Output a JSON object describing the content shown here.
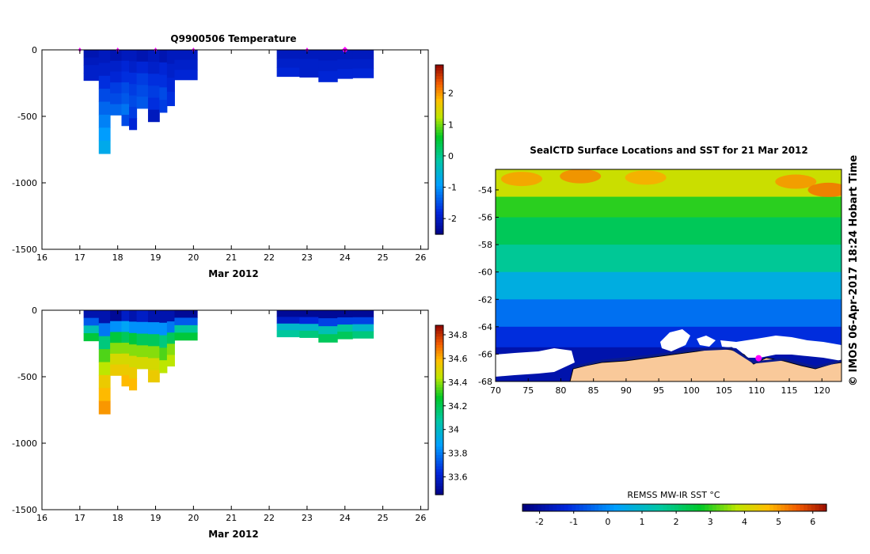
{
  "chart_data": [
    {
      "type": "heatmap",
      "name": "temperature-section",
      "title": "Q9900506  Temperature",
      "xlabel": "Mar 2012",
      "ylabel": "",
      "xlim": [
        16,
        26.2
      ],
      "ylim": [
        -1500,
        0
      ],
      "xticks": [
        16,
        17,
        18,
        19,
        20,
        21,
        22,
        23,
        24,
        25,
        26
      ],
      "yticks": [
        0,
        -500,
        -1000,
        -1500
      ],
      "colorbar": {
        "min": -2.5,
        "max": 2.9,
        "ticks": [
          2,
          1,
          0,
          -1,
          -2
        ]
      },
      "markers": [
        17,
        18,
        19,
        20,
        23,
        24
      ],
      "profiles": [
        {
          "x0": 17.1,
          "x1": 17.5,
          "depth": 230,
          "values": [
            -2.1,
            -2.0,
            -1.9,
            -1.9
          ]
        },
        {
          "x0": 17.5,
          "x1": 17.8,
          "depth": 780,
          "values": [
            -2.0,
            -1.9,
            -1.7,
            -1.5,
            -1.3,
            -1.1,
            -0.9,
            -0.7
          ]
        },
        {
          "x0": 17.8,
          "x1": 18.1,
          "depth": 490,
          "values": [
            -2.1,
            -1.9,
            -1.8,
            -1.6,
            -1.5,
            -1.3
          ]
        },
        {
          "x0": 18.1,
          "x1": 18.3,
          "depth": 570,
          "values": [
            -2.0,
            -1.8,
            -1.7,
            -1.5,
            -1.4,
            -1.2,
            -1.5
          ]
        },
        {
          "x0": 18.3,
          "x1": 18.5,
          "depth": 600,
          "values": [
            -2.0,
            -1.9,
            -1.7,
            -1.6,
            -1.5,
            -1.6,
            -1.8
          ]
        },
        {
          "x0": 18.5,
          "x1": 18.8,
          "depth": 440,
          "values": [
            -2.1,
            -1.8,
            -1.6,
            -1.5,
            -1.4
          ]
        },
        {
          "x0": 18.8,
          "x1": 19.1,
          "depth": 540,
          "values": [
            -2.0,
            -1.9,
            -1.7,
            -1.6,
            -1.7,
            -2.0
          ]
        },
        {
          "x0": 19.1,
          "x1": 19.3,
          "depth": 470,
          "values": [
            -2.1,
            -1.8,
            -1.7,
            -1.5,
            -1.6
          ]
        },
        {
          "x0": 19.3,
          "x1": 19.5,
          "depth": 420,
          "values": [
            -2.0,
            -1.9,
            -1.8,
            -1.7
          ]
        },
        {
          "x0": 19.5,
          "x1": 20.1,
          "depth": 225,
          "values": [
            -2.0,
            -1.9,
            -1.8
          ]
        },
        {
          "x0": 22.2,
          "x1": 22.8,
          "depth": 200,
          "values": [
            -2.0,
            -1.9,
            -1.8
          ]
        },
        {
          "x0": 22.8,
          "x1": 23.3,
          "depth": 205,
          "values": [
            -2.0,
            -1.9,
            -1.9
          ]
        },
        {
          "x0": 23.3,
          "x1": 23.8,
          "depth": 240,
          "values": [
            -2.0,
            -1.9,
            -1.8
          ]
        },
        {
          "x0": 23.8,
          "x1": 24.2,
          "depth": 215,
          "values": [
            -2.0,
            -1.9,
            -1.8
          ]
        },
        {
          "x0": 24.2,
          "x1": 24.75,
          "depth": 210,
          "values": [
            -2.0,
            -1.9,
            -1.8
          ]
        }
      ]
    },
    {
      "type": "heatmap",
      "name": "salinity-section",
      "title": "",
      "xlabel": "Mar 2012",
      "ylabel": "",
      "xlim": [
        16,
        26.2
      ],
      "ylim": [
        -1500,
        0
      ],
      "xticks": [
        16,
        17,
        18,
        19,
        20,
        21,
        22,
        23,
        24,
        25,
        26
      ],
      "yticks": [
        0,
        -500,
        -1000,
        -1500
      ],
      "colorbar": {
        "min": 33.45,
        "max": 34.88,
        "ticks": [
          34.8,
          34.6,
          34.4,
          34.2,
          34,
          33.8,
          33.6
        ]
      },
      "profiles": [
        {
          "x0": 17.1,
          "x1": 17.5,
          "depth": 230,
          "values": [
            33.55,
            33.75,
            34.05,
            34.25
          ]
        },
        {
          "x0": 17.5,
          "x1": 17.8,
          "depth": 780,
          "values": [
            33.55,
            33.8,
            34.15,
            34.35,
            34.45,
            34.55,
            34.6,
            34.65
          ]
        },
        {
          "x0": 17.8,
          "x1": 18.1,
          "depth": 490,
          "values": [
            33.5,
            33.85,
            34.25,
            34.4,
            34.5,
            34.55
          ]
        },
        {
          "x0": 18.1,
          "x1": 18.3,
          "depth": 570,
          "values": [
            33.6,
            33.9,
            34.2,
            34.4,
            34.5,
            34.55,
            34.6
          ]
        },
        {
          "x0": 18.3,
          "x1": 18.5,
          "depth": 600,
          "values": [
            33.55,
            33.85,
            34.25,
            34.4,
            34.5,
            34.55,
            34.6
          ]
        },
        {
          "x0": 18.5,
          "x1": 18.8,
          "depth": 440,
          "values": [
            33.6,
            33.85,
            34.2,
            34.4,
            34.5
          ]
        },
        {
          "x0": 18.8,
          "x1": 19.1,
          "depth": 540,
          "values": [
            33.55,
            33.85,
            34.2,
            34.4,
            34.5,
            34.55
          ]
        },
        {
          "x0": 19.1,
          "x1": 19.3,
          "depth": 470,
          "values": [
            33.55,
            33.85,
            34.15,
            34.35,
            34.45
          ]
        },
        {
          "x0": 19.3,
          "x1": 19.5,
          "depth": 420,
          "values": [
            33.55,
            33.8,
            34.2,
            34.4,
            34.45
          ]
        },
        {
          "x0": 19.5,
          "x1": 20.1,
          "depth": 225,
          "values": [
            33.5,
            33.75,
            34.1,
            34.25
          ]
        },
        {
          "x0": 22.2,
          "x1": 22.8,
          "depth": 200,
          "values": [
            33.5,
            33.6,
            34.0,
            34.1
          ]
        },
        {
          "x0": 22.8,
          "x1": 23.3,
          "depth": 205,
          "values": [
            33.5,
            33.65,
            34.0,
            34.15
          ]
        },
        {
          "x0": 23.3,
          "x1": 23.8,
          "depth": 240,
          "values": [
            33.5,
            33.7,
            34.05,
            34.2
          ]
        },
        {
          "x0": 23.8,
          "x1": 24.2,
          "depth": 215,
          "values": [
            33.5,
            33.7,
            34.1,
            34.2
          ]
        },
        {
          "x0": 24.2,
          "x1": 24.75,
          "depth": 210,
          "values": [
            33.5,
            33.7,
            34.0,
            34.15
          ]
        }
      ]
    },
    {
      "type": "heatmap",
      "name": "sst-map",
      "title": "SealCTD Surface Locations and SST for 21 Mar 2012",
      "xlabel": "",
      "ylabel": "",
      "xlim": [
        70,
        123
      ],
      "ylim": [
        -68,
        -52.5
      ],
      "xticks": [
        70,
        75,
        80,
        85,
        90,
        95,
        100,
        105,
        110,
        115,
        120
      ],
      "yticks": [
        -54,
        -56,
        -58,
        -60,
        -62,
        -64,
        -66,
        -68
      ],
      "colorbar": {
        "label": "REMSS MW-IR SST °C",
        "min": -2.5,
        "max": 6.4,
        "ticks": [
          -2,
          -1,
          0,
          1,
          2,
          3,
          4,
          5,
          6
        ]
      },
      "sst_bands": [
        {
          "lat_top": -52.5,
          "lat_bottom": -54.5,
          "value": 3.9
        },
        {
          "lat_top": -54.5,
          "lat_bottom": -56,
          "value": 2.9
        },
        {
          "lat_top": -56,
          "lat_bottom": -58,
          "value": 2.2
        },
        {
          "lat_top": -58,
          "lat_bottom": -60,
          "value": 1.6
        },
        {
          "lat_top": -60,
          "lat_bottom": -62,
          "value": 0.6
        },
        {
          "lat_top": -62,
          "lat_bottom": -64,
          "value": -0.4
        },
        {
          "lat_top": -64,
          "lat_bottom": -65.5,
          "value": -1.2
        },
        {
          "lat_top": -65.5,
          "lat_bottom": -68,
          "value": -1.9
        }
      ],
      "warm_patches": [
        {
          "lon": 74,
          "lat": -53.2,
          "value": 4.9
        },
        {
          "lon": 83,
          "lat": -53.0,
          "value": 5.1
        },
        {
          "lon": 93,
          "lat": -53.1,
          "value": 4.8
        },
        {
          "lon": 116,
          "lat": -53.4,
          "value": 5.0
        },
        {
          "lon": 121,
          "lat": -54.0,
          "value": 5.3
        }
      ],
      "location_marker": {
        "lon": 110.3,
        "lat": -66.3
      },
      "credit": "© IMOS 06-Apr-2017 18:24 Hobart Time"
    }
  ]
}
